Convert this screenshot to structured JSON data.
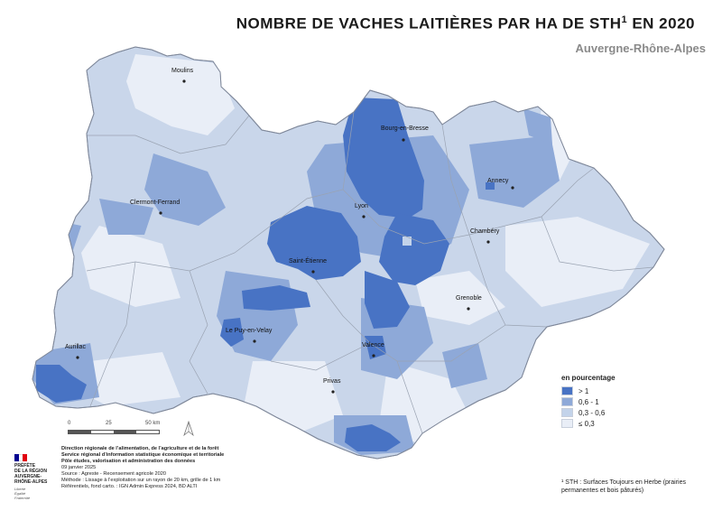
{
  "title": {
    "main": "NOMBRE DE VACHES LAITIÈRES PAR HA DE STH",
    "sup": "1",
    "year": " EN 2020"
  },
  "subtitle": "Auvergne-Rhône-Alpes",
  "colors": {
    "gt1": "#4873c4",
    "c06_1": "#8ea9d8",
    "c03_06": "#c3d3ea",
    "le03": "#e9eef7",
    "boundary": "#9aa3b2"
  },
  "cities": [
    {
      "name": "Moulins"
    },
    {
      "name": "Bourg-en-Bresse"
    },
    {
      "name": "Annecy"
    },
    {
      "name": "Clermont-Ferrand"
    },
    {
      "name": "Lyon"
    },
    {
      "name": "Chambéry"
    },
    {
      "name": "Saint-Étienne"
    },
    {
      "name": "Grenoble"
    },
    {
      "name": "Le Puy-en-Velay"
    },
    {
      "name": "Valence"
    },
    {
      "name": "Aurillac"
    },
    {
      "name": "Privas"
    }
  ],
  "legend": {
    "title": "en pourcentage",
    "items": [
      {
        "label": "> 1",
        "color": "#4873c4"
      },
      {
        "label": "0,6 - 1",
        "color": "#8ea9d8"
      },
      {
        "label": "0,3 - 0,6",
        "color": "#c3d3ea"
      },
      {
        "label": "≤ 0,3",
        "color": "#e9eef7"
      }
    ]
  },
  "scale": {
    "t0": "0",
    "t1": "25",
    "t2": "50 km"
  },
  "logo": {
    "line1": "PRÉFÈTE",
    "line2": "DE LA RÉGION",
    "line3": "AUVERGNE-",
    "line4": "RHÔNE-ALPES",
    "motto1": "Liberté",
    "motto2": "Égalité",
    "motto3": "Fraternité"
  },
  "credits": {
    "org1": "Direction régionale de l’alimentation, de l’agriculture et de la forêt",
    "org2": "Service régional d’information statistique économique et territoriale",
    "org3": "Pôle études, valorisation et administration des données",
    "date": "09 janvier 2025",
    "source": "Source : Agreste - Recensement agricole 2020",
    "method": "Méthode : Lissage à l’exploitation sur un rayon de 20 km, grille de 1 km",
    "refs": "Référentiels, fond carto. : IGN Admin Express 2024, BD ALTI"
  },
  "footnote": "¹ STH : Surfaces Toujours en Herbe (prairies permanentes et bois pâturés)"
}
